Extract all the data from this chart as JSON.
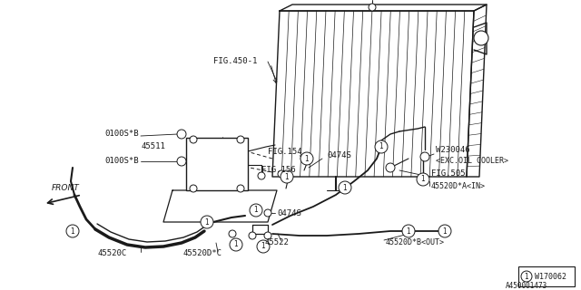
{
  "bg_color": "#ffffff",
  "line_color": "#1a1a1a",
  "labels": {
    "FIG450_1": "FIG.450-1",
    "0100SB_1": "0100S*B",
    "0100SB_2": "0100S*B",
    "45511": "45511",
    "0474S_top": "0474S",
    "FIG154": "FIG.154",
    "FIG156": "FIG.156",
    "0474S_bot": "0474S",
    "W230046": "W230046",
    "EXC_OIL": "<EXC.OIL COOLER>",
    "FIG505": "FIG.505",
    "45520DA_IN": "45520D*A<IN>",
    "45520DB_OUT": "45520D*B<OUT>",
    "45520C": "45520C",
    "45520DC": "45520D*C",
    "45522": "45522",
    "FRONT": "FRONT"
  },
  "footnote": "A450001473",
  "ref_box": "W170062"
}
